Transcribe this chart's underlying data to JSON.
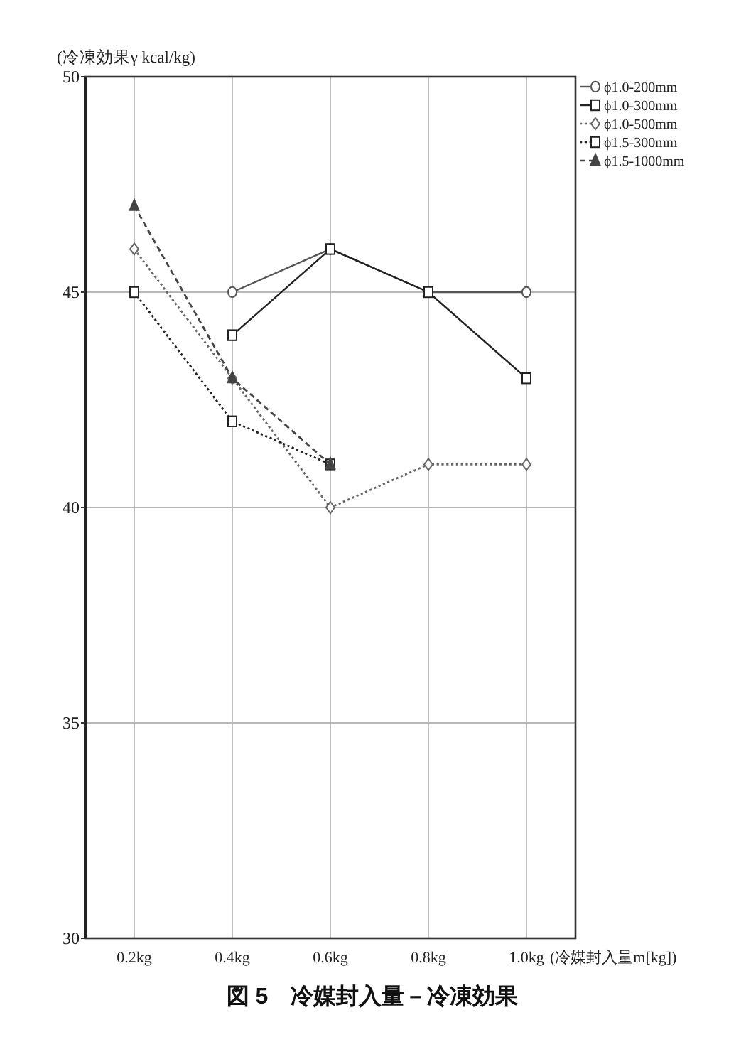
{
  "chart_data": {
    "type": "line",
    "title": "図 5　冷媒封入量－冷凍効果",
    "xlabel": "(冷媒封入量m[kg])",
    "ylabel": "(冷凍効果γ kcal/kg)",
    "x": [
      0.2,
      0.4,
      0.6,
      0.8,
      1.0
    ],
    "xlim": [
      0.1,
      1.1
    ],
    "xticks": [
      {
        "value": 0.2,
        "label": "0.2kg"
      },
      {
        "value": 0.4,
        "label": "0.4kg"
      },
      {
        "value": 0.6,
        "label": "0.6kg"
      },
      {
        "value": 0.8,
        "label": "0.8kg"
      },
      {
        "value": 1.0,
        "label": "1.0kg"
      }
    ],
    "ylim": [
      30,
      50
    ],
    "yticks": [
      30,
      35,
      40,
      45,
      50
    ],
    "grid": true,
    "legend": "top right",
    "series": [
      {
        "name": "ϕ1.0-200mm",
        "color": "#555555",
        "values": [
          null,
          45,
          46,
          45,
          45
        ],
        "marker": "circle",
        "line_style": "solid"
      },
      {
        "name": "ϕ1.0-300mm",
        "color": "#222222",
        "values": [
          null,
          44,
          46,
          45,
          43
        ],
        "marker": "square",
        "line_style": "solid"
      },
      {
        "name": "ϕ1.0-500mm",
        "color": "#666666",
        "values": [
          46,
          43,
          40,
          41,
          41
        ],
        "marker": "diamond",
        "line_style": "dotted"
      },
      {
        "name": "ϕ1.5-300mm",
        "color": "#222222",
        "values": [
          45,
          42,
          41,
          null,
          null
        ],
        "marker": "square",
        "line_style": "dotted"
      },
      {
        "name": "ϕ1.5-1000mm",
        "color": "#444444",
        "values": [
          47,
          43,
          41,
          null,
          null
        ],
        "marker": "triangle",
        "line_style": "dashed"
      }
    ]
  }
}
